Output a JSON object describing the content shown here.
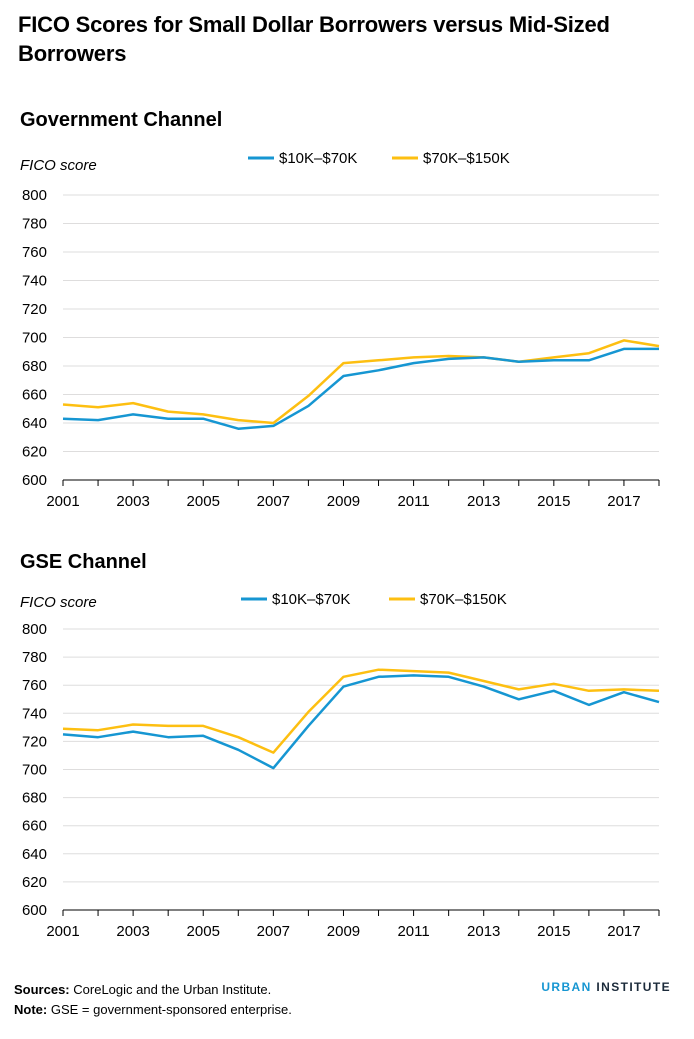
{
  "title": "FICO Scores for Small Dollar Borrowers versus Mid-Sized Borrowers",
  "chart_data": [
    {
      "type": "line",
      "title": "Government Channel",
      "ylabel": "FICO score",
      "xlabel": "",
      "ylim": [
        600,
        800
      ],
      "yticks": [
        600,
        620,
        640,
        660,
        680,
        700,
        720,
        740,
        760,
        780,
        800
      ],
      "xlim": [
        2001,
        2018
      ],
      "xticks": [
        2001,
        2003,
        2005,
        2007,
        2009,
        2011,
        2013,
        2015,
        2017
      ],
      "legend_position": "top",
      "grid": true,
      "x": [
        2001,
        2002,
        2003,
        2004,
        2005,
        2006,
        2007,
        2008,
        2009,
        2010,
        2011,
        2012,
        2013,
        2014,
        2015,
        2016,
        2017,
        2018
      ],
      "series": [
        {
          "name": "$10K–$70K",
          "color": "#1696d2",
          "values": [
            643,
            642,
            646,
            643,
            643,
            636,
            638,
            652,
            673,
            677,
            682,
            685,
            686,
            683,
            684,
            684,
            692,
            692
          ]
        },
        {
          "name": "$70K–$150K",
          "color": "#fdbf11",
          "values": [
            653,
            651,
            654,
            648,
            646,
            642,
            640,
            659,
            682,
            684,
            686,
            687,
            686,
            683,
            686,
            689,
            698,
            694
          ]
        }
      ]
    },
    {
      "type": "line",
      "title": "GSE Channel",
      "ylabel": "FICO score",
      "xlabel": "",
      "ylim": [
        600,
        800
      ],
      "yticks": [
        600,
        620,
        640,
        660,
        680,
        700,
        720,
        740,
        760,
        780,
        800
      ],
      "xlim": [
        2001,
        2018
      ],
      "xticks": [
        2001,
        2003,
        2005,
        2007,
        2009,
        2011,
        2013,
        2015,
        2017
      ],
      "legend_position": "top",
      "grid": true,
      "x": [
        2001,
        2002,
        2003,
        2004,
        2005,
        2006,
        2007,
        2008,
        2009,
        2010,
        2011,
        2012,
        2013,
        2014,
        2015,
        2016,
        2017,
        2018
      ],
      "series": [
        {
          "name": "$10K–$70K",
          "color": "#1696d2",
          "values": [
            725,
            723,
            727,
            723,
            724,
            714,
            701,
            731,
            759,
            766,
            767,
            766,
            759,
            750,
            756,
            746,
            755,
            748
          ]
        },
        {
          "name": "$70K–$150K",
          "color": "#fdbf11",
          "values": [
            729,
            728,
            732,
            731,
            731,
            723,
            712,
            741,
            766,
            771,
            770,
            769,
            763,
            757,
            761,
            756,
            757,
            756
          ]
        }
      ]
    }
  ],
  "footer": {
    "sources_label": "Sources:",
    "sources_text": "CoreLogic and the Urban Institute.",
    "note_label": "Note:",
    "note_text": "GSE = government-sponsored enterprise.",
    "brand_part1": "URBAN",
    "brand_part2": "INSTITUTE"
  }
}
